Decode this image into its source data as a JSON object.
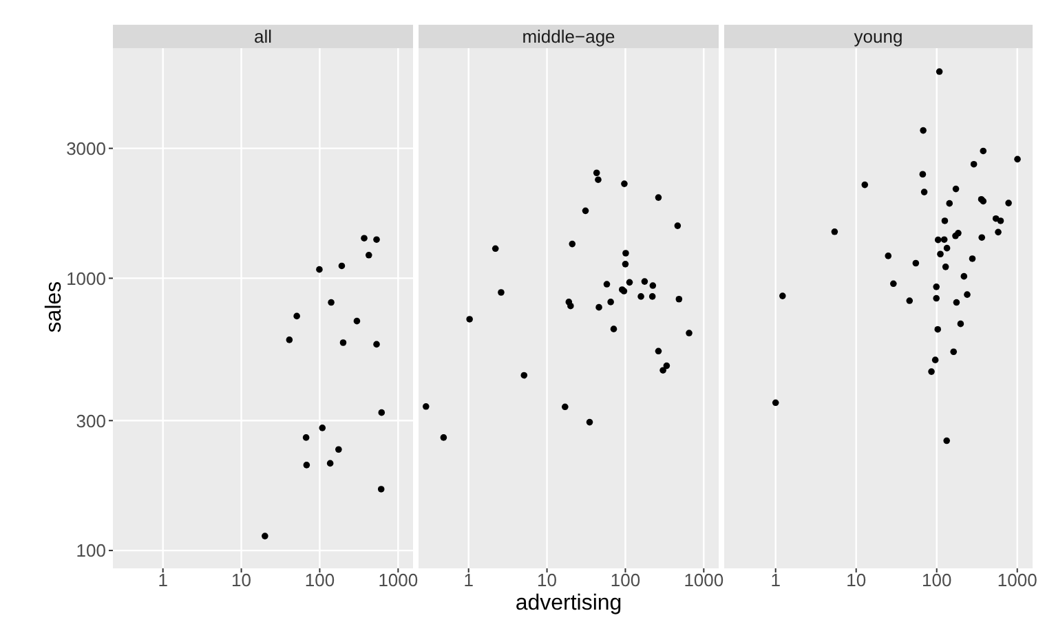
{
  "chart_data": [
    {
      "type": "scatter",
      "title": "all",
      "ylabel": "sales",
      "log": "xy",
      "grid": true,
      "marker": "circle",
      "xlim": [
        0.23,
        1550
      ],
      "ylim": [
        86,
        7000
      ],
      "xticks": [
        1,
        10,
        100,
        1000
      ],
      "yticks": [
        100,
        300,
        1000,
        3000
      ],
      "series": [
        {
          "color": "#000000",
          "x": [
            369,
            531,
            423,
            99,
            191,
            140,
            51,
            298,
            41,
            199,
            531,
            615,
            108,
            67,
            174,
            68,
            136,
            608,
            20
          ],
          "values": [
            1403,
            1387,
            1216,
            1077,
            1110,
            815,
            726,
            696,
            594,
            580,
            572,
            321,
            282,
            260,
            235,
            206,
            209,
            168,
            113
          ]
        }
      ]
    },
    {
      "type": "scatter",
      "title": "middle−age",
      "xlabel": "advertising",
      "log": "xy",
      "grid": true,
      "marker": "circle",
      "tick_labels": "x",
      "xlim": [
        0.23,
        1550
      ],
      "ylim": [
        86,
        7000
      ],
      "xticks": [
        1,
        10,
        100,
        1000
      ],
      "yticks": [
        100,
        300,
        1000,
        3000
      ],
      "series": [
        {
          "color": "#000000",
          "x": [
            43,
            45,
            97,
            264,
            31,
            464,
            21,
            2.2,
            101,
            100,
            58,
            113,
            176,
            224,
            91,
            96,
            2.6,
            158,
            221,
            19,
            65,
            483,
            20,
            46,
            1.03,
            71,
            650,
            264,
            336,
            302,
            5.1,
            0.286,
            17,
            35,
            0.48
          ],
          "values": [
            2438,
            2301,
            2223,
            1979,
            1769,
            1559,
            1336,
            1285,
            1236,
            1127,
            951,
            966,
            973,
            940,
            908,
            897,
            887,
            857,
            857,
            818,
            818,
            838,
            791,
            782,
            707,
            651,
            629,
            540,
            477,
            459,
            440,
            338,
            337,
            296,
            260
          ]
        }
      ]
    },
    {
      "type": "scatter",
      "title": "young",
      "log": "xy",
      "grid": true,
      "marker": "circle",
      "tick_labels": "x",
      "xlim": [
        0.23,
        1550
      ],
      "ylim": [
        86,
        7000
      ],
      "xticks": [
        1,
        10,
        100,
        1000
      ],
      "yticks": [
        100,
        300,
        1000,
        3000
      ],
      "series": [
        {
          "color": "#000000",
          "x": [
            108,
            68,
            378,
            1006,
            289,
            67,
            12.8,
            173,
            70,
            358,
            378,
            144,
            780,
            543,
            621,
            126,
            5.4,
            185,
            171,
            580,
            363,
            104,
            124,
            134,
            111,
            25,
            277,
            55,
            129,
            218,
            29,
            99,
            1.22,
            239,
            99,
            46,
            176,
            198,
            103,
            162,
            96,
            86,
            1.0,
            133
          ],
          "values": [
            5741,
            3490,
            2934,
            2737,
            2623,
            2410,
            2204,
            2128,
            2073,
            1949,
            1919,
            1883,
            1889,
            1656,
            1625,
            1625,
            1482,
            1465,
            1431,
            1477,
            1411,
            1383,
            1387,
            1290,
            1227,
            1208,
            1180,
            1136,
            1101,
            1016,
            955,
            930,
            861,
            871,
            844,
            827,
            815,
            680,
            649,
            537,
            501,
            454,
            349,
            253
          ]
        }
      ]
    }
  ]
}
